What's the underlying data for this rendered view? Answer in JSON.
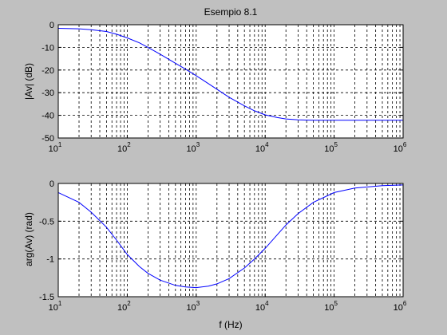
{
  "figure": {
    "background": "#c0c0c0",
    "axes_background": "#ffffff",
    "line_color": "#0000ff",
    "grid_color": "#000000"
  },
  "chart_data": [
    {
      "type": "line",
      "title": "Esempio 8.1",
      "xlabel": "",
      "ylabel": "|Av| (dB)",
      "x_scale": "log",
      "xlim": [
        10,
        1000000
      ],
      "ylim": [
        -50,
        0
      ],
      "grid": true,
      "x_tick_labels": [
        {
          "base": "10",
          "exp": "1"
        },
        {
          "base": "10",
          "exp": "2"
        },
        {
          "base": "10",
          "exp": "3"
        },
        {
          "base": "10",
          "exp": "4"
        },
        {
          "base": "10",
          "exp": "5"
        },
        {
          "base": "10",
          "exp": "6"
        }
      ],
      "y_ticks": [
        "0",
        "-10",
        "-20",
        "-30",
        "-40",
        "-50"
      ],
      "series": [
        {
          "x": [
            10,
            20,
            30,
            50,
            70,
            100,
            150,
            200,
            300,
            500,
            700,
            1000,
            1500,
            2000,
            3000,
            5000,
            7000,
            10000,
            15000,
            20000,
            30000,
            50000,
            100000,
            1000000
          ],
          "y": [
            -1.6,
            -1.8,
            -2.2,
            -3.0,
            -4.2,
            -5.8,
            -8.0,
            -10.0,
            -13.0,
            -17.0,
            -19.6,
            -22.5,
            -26.0,
            -28.5,
            -32.0,
            -35.8,
            -38.0,
            -39.8,
            -41.0,
            -41.6,
            -42.0,
            -42.2,
            -42.2,
            -42.2
          ]
        }
      ]
    },
    {
      "type": "line",
      "title": "",
      "xlabel": "f (Hz)",
      "ylabel": "arg(Av) (rad)",
      "x_scale": "log",
      "xlim": [
        10,
        1000000
      ],
      "ylim": [
        -1.5,
        0
      ],
      "grid": true,
      "x_tick_labels": [
        {
          "base": "10",
          "exp": "1"
        },
        {
          "base": "10",
          "exp": "2"
        },
        {
          "base": "10",
          "exp": "3"
        },
        {
          "base": "10",
          "exp": "4"
        },
        {
          "base": "10",
          "exp": "5"
        },
        {
          "base": "10",
          "exp": "6"
        }
      ],
      "y_ticks": [
        "0",
        "-0.5",
        "-1",
        "-1.5"
      ],
      "series": [
        {
          "x": [
            10,
            20,
            30,
            50,
            70,
            100,
            150,
            200,
            300,
            500,
            700,
            1000,
            1500,
            2000,
            3000,
            5000,
            7000,
            10000,
            20000,
            30000,
            50000,
            100000,
            200000,
            500000,
            1000000
          ],
          "y": [
            -0.12,
            -0.25,
            -0.38,
            -0.58,
            -0.75,
            -0.94,
            -1.1,
            -1.19,
            -1.28,
            -1.35,
            -1.37,
            -1.38,
            -1.36,
            -1.33,
            -1.26,
            -1.12,
            -1.0,
            -0.86,
            -0.55,
            -0.4,
            -0.25,
            -0.12,
            -0.06,
            -0.03,
            -0.02
          ]
        }
      ]
    }
  ]
}
